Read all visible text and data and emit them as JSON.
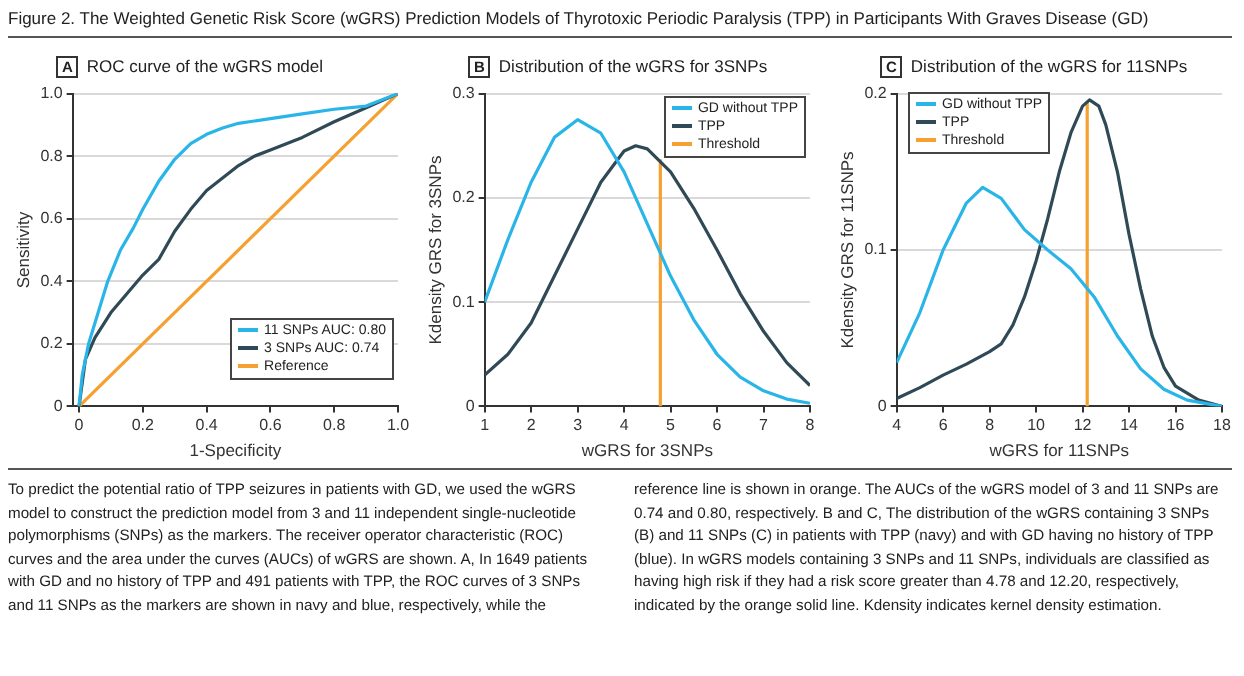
{
  "chart_data": [
    {
      "type": "line",
      "title": "ROC curve of the wGRS model",
      "xlabel": "1-Specificity",
      "ylabel": "Sensitivity",
      "annotations": [
        "A",
        "Figure 2. The Weighted Genetic Risk Score (wGRS) Prediction Models of Thyrotoxic Periodic Paralysis (TPP) in Participants With Graves Disease (GD)"
      ],
      "xlim": [
        -0.02,
        1
      ],
      "xticks": [
        0,
        0.2,
        0.4,
        0.6,
        0.8,
        {
          "value": 1,
          "label": "1.0"
        }
      ],
      "ylim": [
        0,
        1
      ],
      "yticks": [
        0,
        0.2,
        0.4,
        0.6,
        0.8,
        {
          "value": 1,
          "label": "1.0"
        }
      ],
      "grid": "y",
      "legend": "bottom right",
      "marker": "none",
      "line_style": "solid",
      "series": [
        {
          "name": "11 SNPs AUC: 0.80",
          "color": "#29b5e8",
          "x": [
            0,
            0.01,
            0.03,
            0.06,
            0.09,
            0.13,
            0.17,
            0.2,
            0.25,
            0.3,
            0.35,
            0.4,
            0.45,
            0.5,
            0.6,
            0.7,
            0.8,
            0.9,
            1
          ],
          "values": [
            0,
            0.1,
            0.2,
            0.3,
            0.4,
            0.5,
            0.57,
            0.63,
            0.72,
            0.79,
            0.84,
            0.87,
            0.89,
            0.905,
            0.92,
            0.935,
            0.95,
            0.96,
            1
          ]
        },
        {
          "name": "3 SNPs AUC: 0.74",
          "color": "#2f4a56",
          "x": [
            0,
            0.02,
            0.05,
            0.1,
            0.15,
            0.2,
            0.25,
            0.3,
            0.35,
            0.4,
            0.45,
            0.5,
            0.55,
            0.6,
            0.7,
            0.8,
            0.9,
            1
          ],
          "values": [
            0,
            0.15,
            0.22,
            0.3,
            0.36,
            0.42,
            0.47,
            0.56,
            0.63,
            0.69,
            0.73,
            0.77,
            0.8,
            0.82,
            0.86,
            0.91,
            0.955,
            1
          ]
        },
        {
          "name": "Reference",
          "color": "#f5a030",
          "x": [
            0,
            1
          ],
          "values": [
            0,
            1
          ]
        }
      ]
    },
    {
      "type": "line",
      "title": "Distribution of the wGRS for 3SNPs",
      "xlabel": "wGRS for 3SNPs",
      "ylabel": "Kdensity GRS for 3SNPs",
      "annotations": [
        "B"
      ],
      "xlim": [
        1,
        8
      ],
      "xticks": [
        1,
        2,
        3,
        4,
        5,
        6,
        7,
        8
      ],
      "ylim": [
        0,
        0.3
      ],
      "yticks": [
        0,
        0.1,
        0.2,
        0.3
      ],
      "grid": "y",
      "legend": "top right",
      "marker": "none",
      "line_style": "solid",
      "series": [
        {
          "name": "GD without TPP",
          "color": "#29b5e8",
          "x": [
            1,
            1.5,
            2,
            2.5,
            3,
            3.5,
            4,
            4.5,
            5,
            5.5,
            6,
            6.5,
            7,
            7.5,
            8
          ],
          "values": [
            0.1,
            0.16,
            0.215,
            0.258,
            0.275,
            0.262,
            0.225,
            0.175,
            0.125,
            0.083,
            0.05,
            0.028,
            0.015,
            0.007,
            0.003
          ]
        },
        {
          "name": "TPP",
          "color": "#2f4a56",
          "x": [
            1,
            1.5,
            2,
            2.5,
            3,
            3.5,
            4,
            4.25,
            4.5,
            5,
            5.5,
            6,
            6.5,
            7,
            7.5,
            8
          ],
          "values": [
            0.03,
            0.05,
            0.08,
            0.125,
            0.17,
            0.215,
            0.245,
            0.25,
            0.247,
            0.225,
            0.19,
            0.15,
            0.108,
            0.072,
            0.042,
            0.02
          ]
        },
        {
          "name": "Threshold",
          "color": "#f5a030",
          "x": [
            4.78,
            4.78
          ],
          "values": [
            0,
            0.237
          ]
        }
      ]
    },
    {
      "type": "line",
      "title": "Distribution of the wGRS for 11SNPs",
      "xlabel": "wGRS for 11SNPs",
      "ylabel": "Kdensity GRS for 11SNPs",
      "annotations": [
        "C",
        "To predict the potential ratio of TPP seizures in patients with GD, we used the wGRS model to construct the prediction model from 3 and 11 independent single-nucleotide polymorphisms (SNPs) as the markers. The receiver operator characteristic (ROC) curves and the area under the curves (AUCs) of wGRS are shown. A, In 1649 patients with GD and no history of TPP and 491 patients with TPP, the ROC curves of 3 SNPs and 11 SNPs as the markers are shown in navy and blue, respectively, while the reference line is shown in orange. The AUCs of the wGRS model of 3 and 11 SNPs are 0.74 and 0.80, respectively. B and C, The distribution of the wGRS containing 3 SNPs (B) and 11 SNPs (C) in patients with TPP (navy) and with GD having no history of TPP (blue). In wGRS models containing 3 SNPs and 11 SNPs, individuals are classified as having high risk if they had a risk score greater than 4.78 and 12.20, respectively, indicated by the orange solid line. Kdensity indicates kernel density estimation."
      ],
      "xlim": [
        4,
        18
      ],
      "xticks": [
        4,
        6,
        8,
        10,
        12,
        14,
        16,
        18
      ],
      "ylim": [
        0,
        0.2
      ],
      "yticks": [
        0,
        0.1,
        0.2
      ],
      "grid": "y",
      "legend": "top left",
      "marker": "none",
      "line_style": "solid",
      "series": [
        {
          "name": "GD without TPP",
          "color": "#29b5e8",
          "x": [
            4,
            5,
            6,
            7,
            7.7,
            8.5,
            9.5,
            10.5,
            11.5,
            12.5,
            13.5,
            14.5,
            15.5,
            16.5,
            18
          ],
          "values": [
            0.028,
            0.06,
            0.1,
            0.13,
            0.14,
            0.133,
            0.113,
            0.1,
            0.088,
            0.07,
            0.045,
            0.024,
            0.011,
            0.004,
            0
          ]
        },
        {
          "name": "TPP",
          "color": "#2f4a56",
          "x": [
            4,
            5,
            6,
            7,
            8,
            8.5,
            9,
            9.5,
            10,
            10.5,
            11,
            11.5,
            12,
            12.3,
            12.7,
            13,
            13.5,
            14,
            14.5,
            15,
            15.5,
            16,
            17,
            18
          ],
          "values": [
            0.005,
            0.012,
            0.02,
            0.027,
            0.035,
            0.04,
            0.052,
            0.07,
            0.093,
            0.12,
            0.15,
            0.175,
            0.192,
            0.196,
            0.192,
            0.18,
            0.15,
            0.11,
            0.075,
            0.045,
            0.025,
            0.013,
            0.004,
            0
          ]
        },
        {
          "name": "Threshold",
          "color": "#f5a030",
          "x": [
            12.2,
            12.2
          ],
          "values": [
            0,
            0.195
          ]
        }
      ]
    }
  ]
}
